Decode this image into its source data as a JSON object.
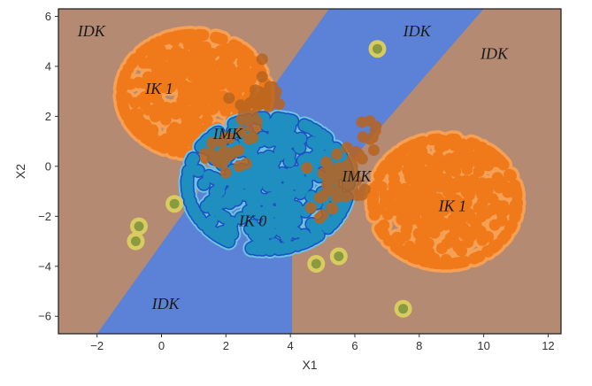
{
  "chart_data": {
    "type": "scatter",
    "xlabel": "X1",
    "ylabel": "X2",
    "xlim": [
      -3.2,
      12.4
    ],
    "ylim": [
      -6.7,
      6.3
    ],
    "x_ticks": [
      -2,
      0,
      2,
      4,
      6,
      8,
      10,
      12
    ],
    "y_ticks": [
      -6,
      -4,
      -2,
      0,
      2,
      4,
      6
    ],
    "grid": false,
    "background_color": "#b58a72",
    "colors": {
      "band": "#5b82d6",
      "cluster_orange": "#f07a1a",
      "cluster_orange_halo": "#f5a055",
      "cluster_teal": "#1f8fc0",
      "cluster_teal_halo": "#6cc4e0",
      "cluster_blue_edge": "#1c4fc4",
      "cluster_brown_overlap": "#b8641f",
      "outlier_olive": "#8a9a40",
      "outlier_yellow_halo": "#d8cc60"
    },
    "band_polygon": [
      [
        -2.0,
        -6.7
      ],
      [
        5.2,
        6.3
      ],
      [
        10.0,
        6.3
      ],
      [
        4.05,
        -2.5
      ],
      [
        4.05,
        -6.7
      ]
    ],
    "clusters": [
      {
        "class": "IK 1",
        "center": [
          1.0,
          2.9
        ],
        "spread": [
          1.7,
          1.8
        ]
      },
      {
        "class": "IK 0",
        "center": [
          3.3,
          -0.7
        ],
        "spread": [
          1.9,
          2.0
        ]
      },
      {
        "class": "IK 1",
        "center": [
          8.8,
          -1.4
        ],
        "spread": [
          1.7,
          1.9
        ]
      }
    ],
    "outliers": [
      {
        "x": 6.7,
        "y": 4.7
      },
      {
        "x": 7.5,
        "y": -5.7
      },
      {
        "x": -0.7,
        "y": -2.4
      },
      {
        "x": -0.8,
        "y": -3.0
      },
      {
        "x": 0.4,
        "y": -1.5
      },
      {
        "x": 4.8,
        "y": -3.9
      },
      {
        "x": 5.5,
        "y": -3.6
      }
    ],
    "region_labels": [
      {
        "text": "IDK",
        "x": -2.6,
        "y": 5.2
      },
      {
        "text": "IDK",
        "x": 7.5,
        "y": 5.2
      },
      {
        "text": "IDK",
        "x": 9.9,
        "y": 4.3
      },
      {
        "text": "IDK",
        "x": -0.3,
        "y": -5.7
      },
      {
        "text": "IK 1",
        "x": -0.5,
        "y": 2.9
      },
      {
        "text": "IK 1",
        "x": 8.6,
        "y": -1.8
      },
      {
        "text": "IK 0",
        "x": 2.4,
        "y": -2.4
      },
      {
        "text": "IMK",
        "x": 1.6,
        "y": 1.1
      },
      {
        "text": "IMK",
        "x": 5.6,
        "y": -0.6
      }
    ]
  }
}
